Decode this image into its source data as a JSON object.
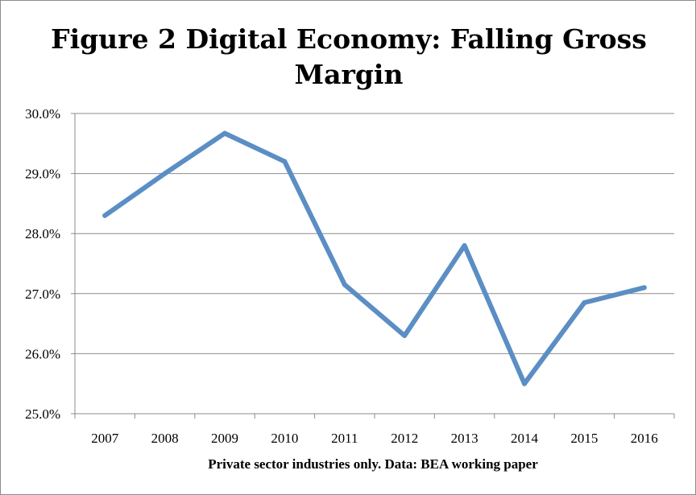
{
  "chart_data": {
    "type": "line",
    "title": "Figure 2 Digital Economy: Falling Gross Margin",
    "xlabel": "Private sector industries only. Data: BEA working paper",
    "ylabel": "",
    "categories": [
      "2007",
      "2008",
      "2009",
      "2010",
      "2011",
      "2012",
      "2013",
      "2014",
      "2015",
      "2016"
    ],
    "series": [
      {
        "values": [
          28.3,
          29.0,
          29.67,
          29.2,
          27.15,
          26.3,
          27.8,
          25.5,
          26.85,
          27.1
        ],
        "color": "#5b8ec4"
      }
    ],
    "ylim": [
      25.0,
      30.0
    ],
    "yticks": [
      25.0,
      26.0,
      27.0,
      28.0,
      29.0,
      30.0
    ],
    "ytick_labels": [
      "25.0%",
      "26.0%",
      "27.0%",
      "28.0%",
      "29.0%",
      "30.0%"
    ],
    "grid": true,
    "legend": "none"
  }
}
